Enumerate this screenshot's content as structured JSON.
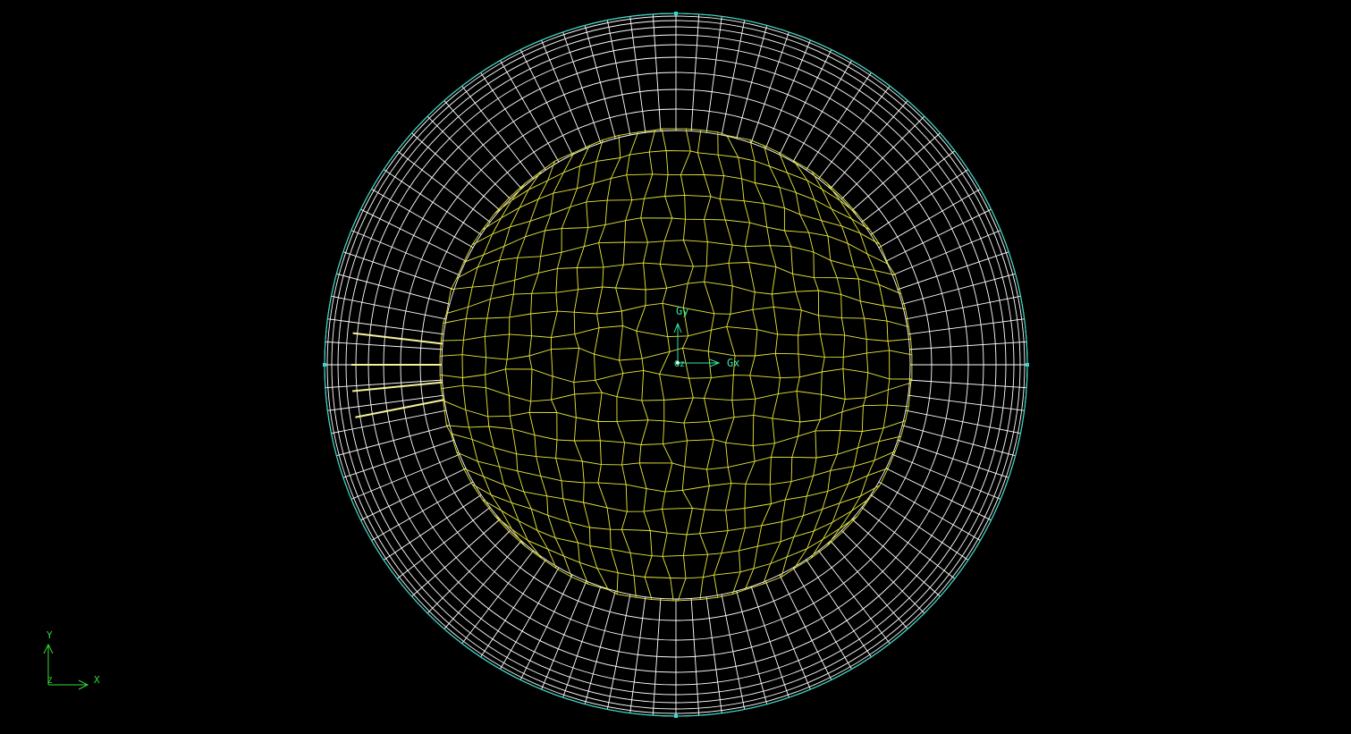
{
  "viewport": {
    "background": "#000000",
    "mesh": {
      "outer_ring_color": "#ffffff",
      "inner_core_color": "#e8e83a",
      "boundary_color": "#39d9c8"
    },
    "global_axes": {
      "color": "#33e6a0",
      "x_label": "Gx",
      "y_label": "Gy",
      "z_label": "Gz"
    },
    "view_triad": {
      "color": "#33dd33",
      "x_label": "X",
      "y_label": "Y",
      "z_label": "Z"
    }
  }
}
